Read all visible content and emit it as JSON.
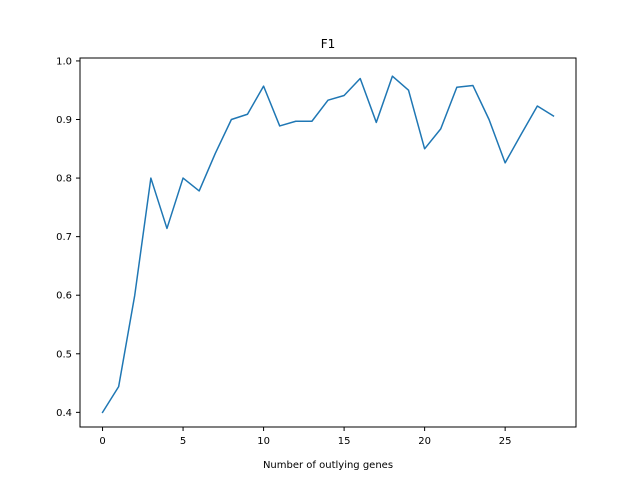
{
  "chart_data": {
    "type": "line",
    "title": "F1",
    "xlabel": "Number of outlying genes",
    "ylabel": "",
    "xlim": [
      -1.4,
      29.4
    ],
    "ylim": [
      0.375,
      1.005
    ],
    "x_ticks": [
      0,
      5,
      10,
      15,
      20,
      25
    ],
    "x_tick_labels": [
      "0",
      "5",
      "10",
      "15",
      "20",
      "25"
    ],
    "y_ticks": [
      0.4,
      0.5,
      0.6,
      0.7,
      0.8,
      0.9,
      1.0
    ],
    "y_tick_labels": [
      "0.4",
      "0.5",
      "0.6",
      "0.7",
      "0.8",
      "0.9",
      "1.0"
    ],
    "grid": false,
    "series": [
      {
        "color": "#1f77b4",
        "x": [
          0,
          1,
          2,
          3,
          4,
          5,
          6,
          7,
          8,
          9,
          10,
          11,
          12,
          13,
          14,
          15,
          16,
          17,
          18,
          19,
          20,
          21,
          22,
          23,
          24,
          25,
          26,
          27,
          28
        ],
        "values": [
          0.4,
          0.444,
          0.6,
          0.8,
          0.714,
          0.8,
          0.778,
          0.842,
          0.9,
          0.909,
          0.957,
          0.889,
          0.897,
          0.897,
          0.933,
          0.941,
          0.97,
          0.895,
          0.974,
          0.95,
          0.85,
          0.884,
          0.955,
          0.958,
          0.9,
          0.826,
          0.875,
          0.923,
          0.906
        ]
      }
    ]
  }
}
